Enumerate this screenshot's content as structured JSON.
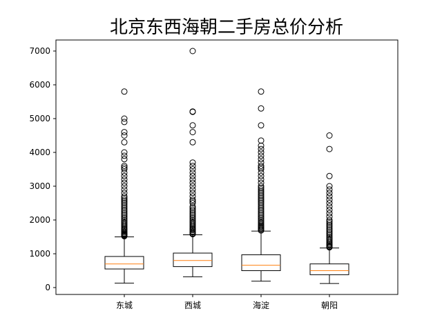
{
  "chart_data": {
    "type": "boxplot",
    "title": "北京东西海朝二手房总价分析",
    "xlabel": "",
    "ylabel": "",
    "ylim": [
      -200,
      7300
    ],
    "yticks": [
      0,
      1000,
      2000,
      3000,
      4000,
      5000,
      6000,
      7000
    ],
    "categories": [
      "东城",
      "西城",
      "海淀",
      "朝阳"
    ],
    "grid": false,
    "colors": {
      "box": "#000000",
      "median": "#ff7f0e",
      "flier": "#000000"
    },
    "boxes": [
      {
        "category": "东城",
        "whisker_low": 130,
        "q1": 550,
        "median": 700,
        "q3": 920,
        "whisker_high": 1500,
        "outliers": [
          1520,
          1540,
          1560,
          1580,
          1600,
          1630,
          1660,
          1700,
          1730,
          1760,
          1800,
          1840,
          1880,
          1920,
          1960,
          2000,
          2050,
          2100,
          2150,
          2200,
          2250,
          2300,
          2350,
          2400,
          2450,
          2500,
          2550,
          2600,
          2650,
          2700,
          2800,
          2900,
          3000,
          3100,
          3200,
          3300,
          3400,
          3500,
          3550,
          3600,
          3800,
          3900,
          4000,
          4300,
          4500,
          4600,
          4900,
          5000,
          5800
        ]
      },
      {
        "category": "西城",
        "whisker_low": 320,
        "q1": 620,
        "median": 800,
        "q3": 1020,
        "whisker_high": 1560,
        "outliers": [
          1580,
          1600,
          1630,
          1660,
          1700,
          1730,
          1760,
          1800,
          1840,
          1880,
          1920,
          1960,
          2000,
          2050,
          2100,
          2150,
          2200,
          2250,
          2300,
          2350,
          2400,
          2500,
          2550,
          2600,
          2700,
          2800,
          2900,
          3000,
          3100,
          3200,
          3300,
          3400,
          3500,
          3600,
          3700,
          4300,
          4600,
          4800,
          5200,
          5210,
          7000
        ]
      },
      {
        "category": "海淀",
        "whisker_low": 190,
        "q1": 500,
        "median": 660,
        "q3": 970,
        "whisker_high": 1670,
        "outliers": [
          1690,
          1720,
          1750,
          1780,
          1810,
          1840,
          1880,
          1920,
          1960,
          2000,
          2050,
          2100,
          2150,
          2200,
          2250,
          2300,
          2350,
          2400,
          2450,
          2500,
          2550,
          2600,
          2650,
          2700,
          2750,
          2800,
          2850,
          2900,
          2950,
          3000,
          3100,
          3200,
          3300,
          3400,
          3500,
          3550,
          3600,
          3700,
          3800,
          3900,
          4000,
          4100,
          4200,
          4350,
          4800,
          5300,
          5800
        ]
      },
      {
        "category": "朝阳",
        "whisker_low": 120,
        "q1": 380,
        "median": 500,
        "q3": 700,
        "whisker_high": 1170,
        "outliers": [
          1190,
          1210,
          1240,
          1270,
          1300,
          1340,
          1380,
          1420,
          1460,
          1500,
          1550,
          1600,
          1650,
          1700,
          1750,
          1800,
          1850,
          1900,
          1950,
          2000,
          2100,
          2200,
          2300,
          2400,
          2500,
          2600,
          2700,
          2800,
          2900,
          3000,
          3300,
          4100,
          4500
        ]
      }
    ]
  }
}
